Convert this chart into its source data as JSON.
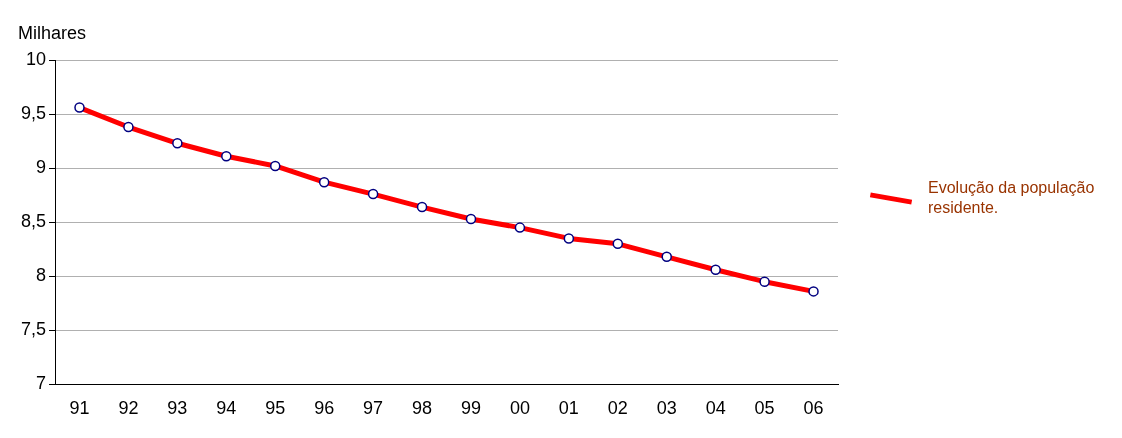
{
  "chart_data": {
    "type": "line",
    "ylabel": "Milhares",
    "categories": [
      "91",
      "92",
      "93",
      "94",
      "95",
      "96",
      "97",
      "98",
      "99",
      "00",
      "01",
      "02",
      "03",
      "04",
      "05",
      "06"
    ],
    "series": [
      {
        "name": "Evolução da população residente.",
        "color": "#ff0000",
        "values": [
          9.56,
          9.38,
          9.23,
          9.11,
          9.02,
          8.87,
          8.76,
          8.64,
          8.53,
          8.45,
          8.35,
          8.3,
          8.18,
          8.06,
          7.95,
          7.86
        ]
      }
    ],
    "ylim": [
      7,
      10
    ],
    "yticks": [
      7,
      {
        "value": 7.5,
        "label": "7,5"
      },
      8,
      {
        "value": 8.5,
        "label": "8,5"
      },
      9,
      {
        "value": 9.5,
        "label": "9,5"
      },
      10
    ],
    "grid": "y",
    "legend": "right",
    "marker": "circle",
    "line_style": "solid"
  }
}
